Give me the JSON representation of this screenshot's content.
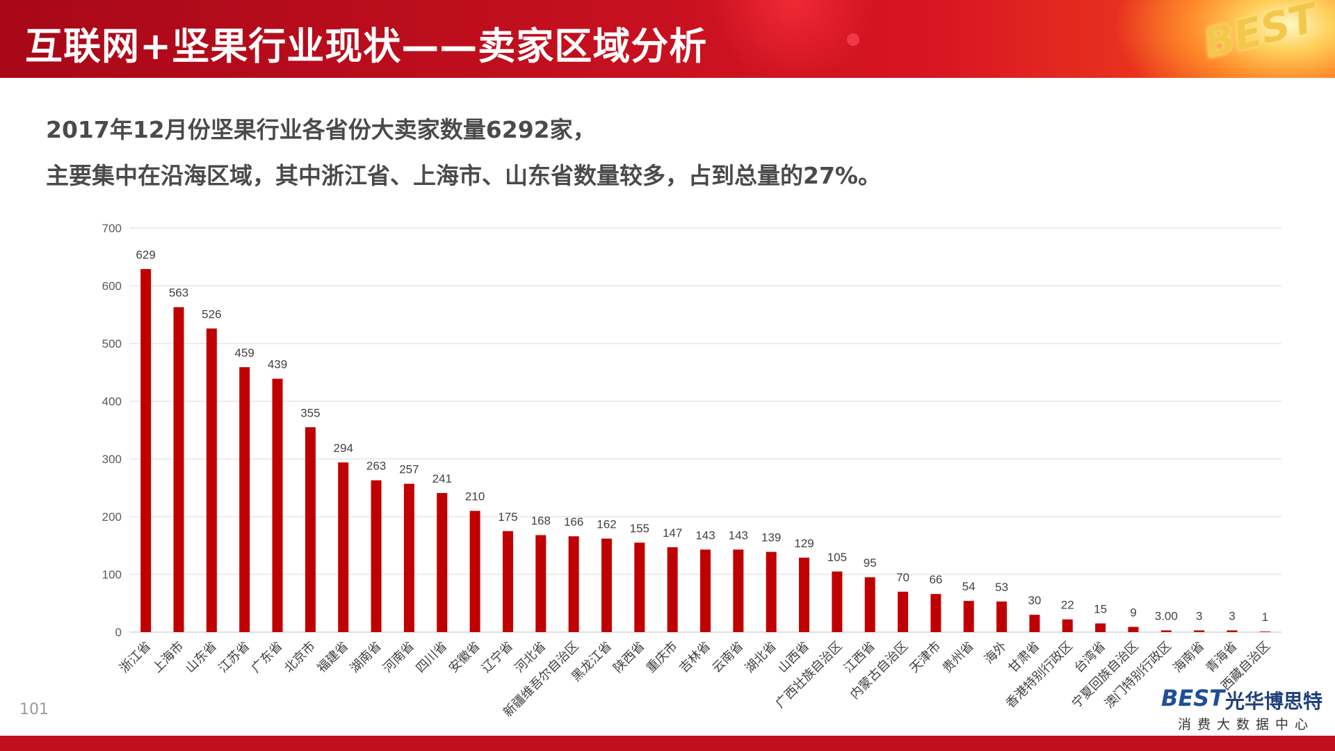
{
  "title": "互联网+坚果行业现状——卖家区域分析",
  "summary": [
    "2017年12月份坚果行业各省份大卖家数量6292家，",
    "主要集中在沿海区域，其中浙江省、上海市、山东省数量较多，占到总量的27%。"
  ],
  "page_number": "101",
  "logo": {
    "badge": "BEST",
    "footer_best": "BEST",
    "footer_name": "光华博思特",
    "footer_subtitle": "消费大数据中心"
  },
  "colors": {
    "bar": "#c00000",
    "banner": "#c4101f",
    "grid": "#d9d9d9"
  },
  "chart_data": {
    "type": "bar",
    "categories": [
      "浙江省",
      "上海市",
      "山东省",
      "江苏省",
      "广东省",
      "北京市",
      "福建省",
      "湖南省",
      "河南省",
      "四川省",
      "安徽省",
      "辽宁省",
      "河北省",
      "新疆维吾尔自治区",
      "黑龙江省",
      "陕西省",
      "重庆市",
      "吉林省",
      "云南省",
      "湖北省",
      "山西省",
      "广西壮族自治区",
      "江西省",
      "内蒙古自治区",
      "天津市",
      "贵州省",
      "海外",
      "甘肃省",
      "香港特别行政区",
      "台湾省",
      "宁夏回族自治区",
      "澳门特别行政区",
      "海南省",
      "青海省",
      "西藏自治区"
    ],
    "values": [
      629,
      563,
      526,
      459,
      439,
      355,
      294,
      263,
      257,
      241,
      210,
      175,
      168,
      166,
      162,
      155,
      147,
      143,
      143,
      139,
      129,
      105,
      95,
      70,
      66,
      54,
      53,
      30,
      22,
      15,
      9,
      3,
      3,
      3,
      1
    ],
    "data_labels": [
      "629",
      "563",
      "526",
      "459",
      "439",
      "355",
      "294",
      "263",
      "257",
      "241",
      "210",
      "175",
      "168",
      "166",
      "162",
      "155",
      "147",
      "143",
      "143",
      "139",
      "129",
      "105",
      "95",
      "70",
      "66",
      "54",
      "53",
      "30",
      "22",
      "15",
      "9",
      "3.00",
      "3",
      "3",
      "1"
    ],
    "y_ticks": [
      "0",
      "100",
      "200",
      "300",
      "400",
      "500",
      "600",
      "700"
    ],
    "ylim": [
      0,
      700
    ],
    "grid": true,
    "legend": "none"
  }
}
